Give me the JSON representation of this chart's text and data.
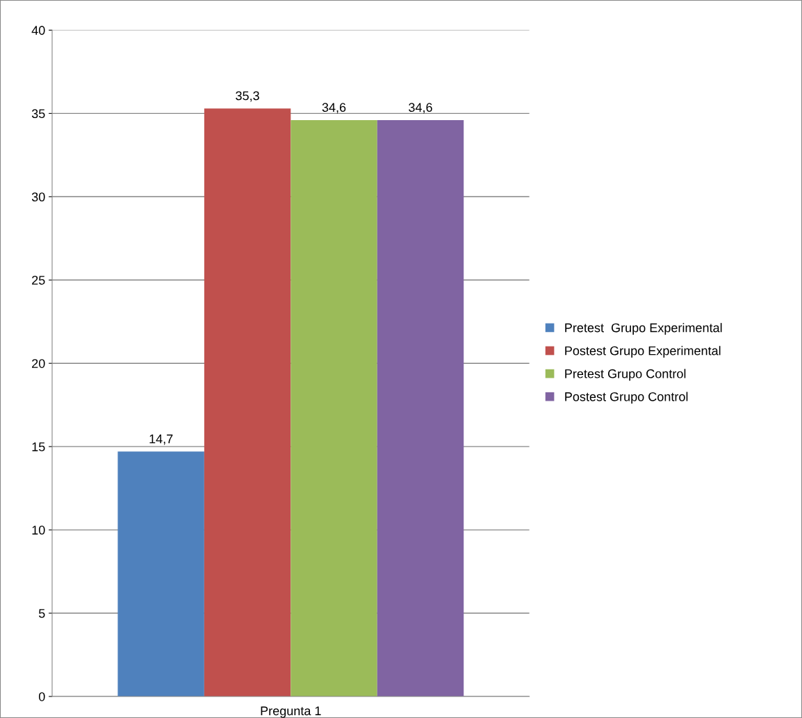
{
  "chart_data": {
    "type": "bar",
    "categories": [
      "Pregunta 1"
    ],
    "series": [
      {
        "name": "Pretest  Grupo Experimental",
        "color": "#4f81bd",
        "values": [
          14.7
        ],
        "value_labels": [
          "14,7"
        ]
      },
      {
        "name": "Postest Grupo Experimental",
        "color": "#c0504d",
        "values": [
          35.3
        ],
        "value_labels": [
          "35,3"
        ]
      },
      {
        "name": "Pretest Grupo Control",
        "color": "#9bbb59",
        "values": [
          34.6
        ],
        "value_labels": [
          "34,6"
        ]
      },
      {
        "name": "Postest Grupo Control",
        "color": "#8064a2",
        "values": [
          34.6
        ],
        "value_labels": [
          "34,6"
        ]
      }
    ],
    "ylim": [
      0,
      40
    ],
    "yticks": [
      0,
      5,
      10,
      15,
      20,
      25,
      30,
      35,
      40
    ],
    "grid": "y",
    "legend": "right"
  }
}
